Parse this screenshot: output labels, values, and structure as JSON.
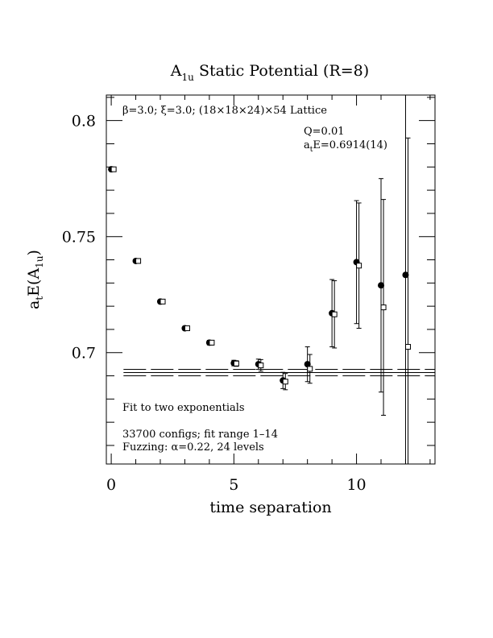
{
  "chart_data": {
    "type": "scatter",
    "title_main": "A",
    "title_sub": "1u",
    "title_rest": " Static Potential (R=8)",
    "xlabel": "time separation",
    "ylabel_main": "a",
    "ylabel_sub1": "t",
    "ylabel_mid": "E(A",
    "ylabel_sub2": "1u",
    "ylabel_end": ")",
    "xlim": [
      -0.2,
      13.2
    ],
    "ylim": [
      0.652,
      0.811
    ],
    "x_ticks": [
      0,
      5,
      10
    ],
    "x_tick_labels": [
      "0",
      "5",
      "10"
    ],
    "y_ticks": [
      0.7,
      0.75,
      0.8
    ],
    "y_tick_labels": [
      "0.7",
      "0.75",
      "0.8"
    ],
    "grid": false,
    "series": [
      {
        "marker": "filled-circle",
        "points": [
          {
            "x": 0,
            "y": 0.779,
            "err": 0.0005
          },
          {
            "x": 1,
            "y": 0.7395,
            "err": 0.0006
          },
          {
            "x": 2,
            "y": 0.722,
            "err": 0.0007
          },
          {
            "x": 3,
            "y": 0.7105,
            "err": 0.0008
          },
          {
            "x": 4,
            "y": 0.7043,
            "err": 0.001
          },
          {
            "x": 5,
            "y": 0.6955,
            "err": 0.0012
          },
          {
            "x": 6,
            "y": 0.695,
            "err": 0.0022
          },
          {
            "x": 7,
            "y": 0.688,
            "err": 0.0035
          },
          {
            "x": 8,
            "y": 0.695,
            "err": 0.0075
          },
          {
            "x": 9,
            "y": 0.717,
            "err": 0.0145
          },
          {
            "x": 10,
            "y": 0.739,
            "err": 0.0265
          },
          {
            "x": 11,
            "y": 0.729,
            "err": 0.046
          },
          {
            "x": 12,
            "y": 0.7335,
            "err": 0.09
          }
        ]
      },
      {
        "marker": "open-square",
        "points": [
          {
            "x": 0.1,
            "y": 0.779,
            "err": 0.0005
          },
          {
            "x": 1.1,
            "y": 0.7395,
            "err": 0.0006
          },
          {
            "x": 2.1,
            "y": 0.722,
            "err": 0.0007
          },
          {
            "x": 3.1,
            "y": 0.7105,
            "err": 0.0008
          },
          {
            "x": 4.1,
            "y": 0.7043,
            "err": 0.001
          },
          {
            "x": 5.1,
            "y": 0.6953,
            "err": 0.0012
          },
          {
            "x": 6.1,
            "y": 0.6945,
            "err": 0.0025
          },
          {
            "x": 7.1,
            "y": 0.6875,
            "err": 0.0035
          },
          {
            "x": 8.1,
            "y": 0.693,
            "err": 0.0062
          },
          {
            "x": 9.1,
            "y": 0.7165,
            "err": 0.0145
          },
          {
            "x": 10.1,
            "y": 0.7375,
            "err": 0.027
          },
          {
            "x": 11.1,
            "y": 0.7195,
            "err": 0.0465
          },
          {
            "x": 12.1,
            "y": 0.7025,
            "err": 0.09
          }
        ]
      }
    ],
    "fit": {
      "x_from": 0.5,
      "x_to": 13.2,
      "central": 0.6914,
      "band_upper": 0.6928,
      "band_lower": 0.69
    },
    "annotations": {
      "lattice_line": "β=3.0; ξ=3.0; (18×18×24)×54 Lattice",
      "q_value": "Q=0.01",
      "energy_main": "a",
      "energy_sub": "t",
      "energy_rest": "E=0.6914(14)",
      "fit_note": "Fit to two exponentials",
      "configs_note": "33700 configs; fit range 1–14",
      "fuzzing_note": "Fuzzing: α=0.22, 24 levels"
    },
    "colors": {
      "ink": "#000000",
      "background": "#ffffff"
    }
  }
}
